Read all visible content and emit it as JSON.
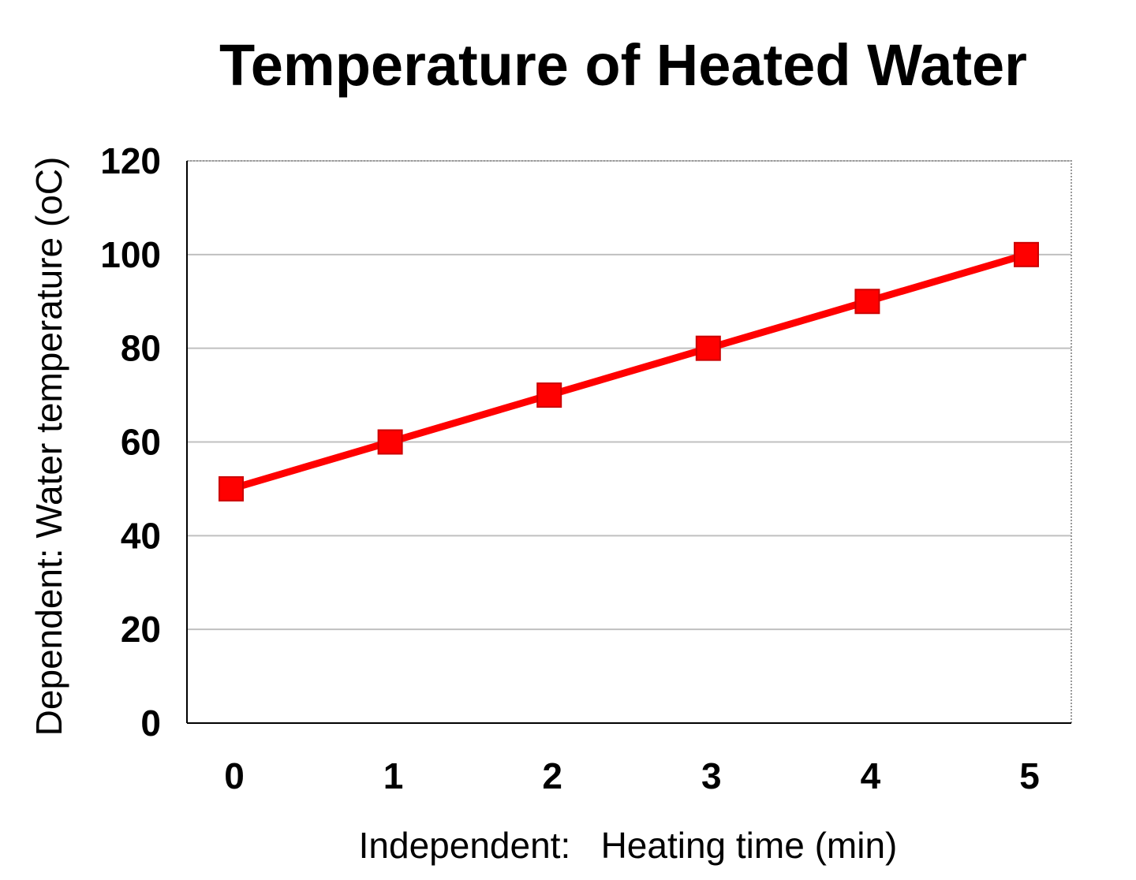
{
  "chart_data": {
    "type": "line",
    "title": "Temperature of Heated Water",
    "xlabel": "Independent:   Heating time (min)",
    "ylabel": "Dependent:  Water temperature (oC)",
    "x": [
      0,
      1,
      2,
      3,
      4,
      5
    ],
    "x_tick_labels": [
      "0",
      "1",
      "2",
      "3",
      "4",
      "5"
    ],
    "y_ticks": [
      0,
      20,
      40,
      60,
      80,
      100,
      120
    ],
    "y_tick_labels": [
      "0",
      "20",
      "40",
      "60",
      "80",
      "100",
      "120"
    ],
    "ylim": [
      0,
      120
    ],
    "grid": "horizontal",
    "legend": "none",
    "series": [
      {
        "name": "Water temperature",
        "values": [
          50,
          60,
          70,
          80,
          90,
          100
        ],
        "color": "#ff0000",
        "marker": "square"
      }
    ]
  }
}
